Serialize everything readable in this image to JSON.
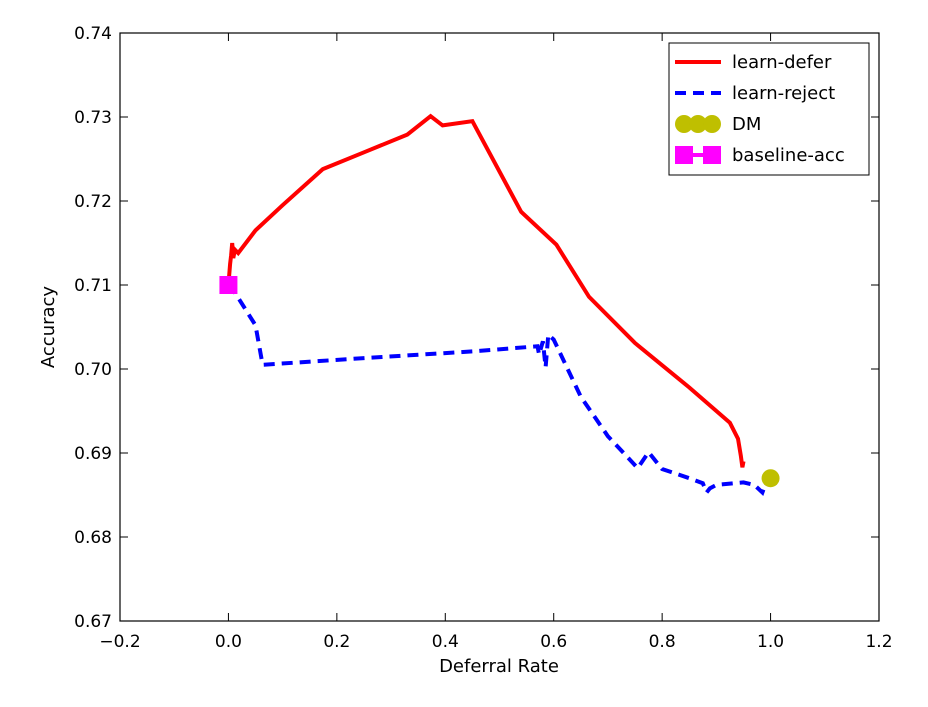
{
  "chart_data": {
    "type": "line",
    "title": "",
    "xlabel": "Deferral Rate",
    "ylabel": "Accuracy",
    "xlim": [
      -0.2,
      1.2
    ],
    "ylim": [
      0.67,
      0.74
    ],
    "x_ticks": [
      -0.2,
      0.0,
      0.2,
      0.4,
      0.6,
      0.8,
      1.0,
      1.2
    ],
    "y_ticks": [
      0.67,
      0.68,
      0.69,
      0.7,
      0.71,
      0.72,
      0.73,
      0.74
    ],
    "x_tick_labels": [
      "−0.2",
      "0.0",
      "0.2",
      "0.4",
      "0.6",
      "0.8",
      "1.0",
      "1.2"
    ],
    "y_tick_labels": [
      "0.67",
      "0.68",
      "0.69",
      "0.70",
      "0.71",
      "0.72",
      "0.73",
      "0.74"
    ],
    "grid": false,
    "legend_position": "top-right",
    "series": [
      {
        "name": "learn-defer",
        "kind": "line",
        "style": "solid",
        "color": "#ff0000",
        "points": [
          [
            0.0,
            0.71
          ],
          [
            0.003,
            0.7125
          ],
          [
            0.005,
            0.7135
          ],
          [
            0.007,
            0.715
          ],
          [
            0.009,
            0.7132
          ],
          [
            0.012,
            0.7142
          ],
          [
            0.018,
            0.7138
          ],
          [
            0.05,
            0.7165
          ],
          [
            0.1,
            0.7195
          ],
          [
            0.174,
            0.7238
          ],
          [
            0.25,
            0.7258
          ],
          [
            0.33,
            0.7279
          ],
          [
            0.373,
            0.7301
          ],
          [
            0.395,
            0.729
          ],
          [
            0.45,
            0.7295
          ],
          [
            0.54,
            0.7187
          ],
          [
            0.605,
            0.7148
          ],
          [
            0.665,
            0.7086
          ],
          [
            0.75,
            0.7031
          ],
          [
            0.85,
            0.6978
          ],
          [
            0.925,
            0.6936
          ],
          [
            0.94,
            0.6917
          ],
          [
            0.945,
            0.6897
          ],
          [
            0.948,
            0.6883
          ],
          [
            0.95,
            0.689
          ]
        ]
      },
      {
        "name": "learn-reject",
        "kind": "line",
        "style": "dashed",
        "color": "#0000ff",
        "points": [
          [
            0.0,
            0.71
          ],
          [
            0.008,
            0.7095
          ],
          [
            0.05,
            0.7052
          ],
          [
            0.063,
            0.7005
          ],
          [
            0.25,
            0.7013
          ],
          [
            0.45,
            0.7021
          ],
          [
            0.57,
            0.7027
          ],
          [
            0.573,
            0.7017
          ],
          [
            0.58,
            0.7033
          ],
          [
            0.585,
            0.7002
          ],
          [
            0.59,
            0.7041
          ],
          [
            0.6,
            0.7035
          ],
          [
            0.65,
            0.6967
          ],
          [
            0.7,
            0.692
          ],
          [
            0.755,
            0.6882
          ],
          [
            0.775,
            0.6901
          ],
          [
            0.8,
            0.6881
          ],
          [
            0.85,
            0.687
          ],
          [
            0.875,
            0.6864
          ],
          [
            0.882,
            0.6853
          ],
          [
            0.888,
            0.6858
          ],
          [
            0.9,
            0.6862
          ],
          [
            0.95,
            0.6865
          ],
          [
            0.97,
            0.6862
          ],
          [
            0.985,
            0.6853
          ],
          [
            0.99,
            0.6862
          ],
          [
            0.995,
            0.6869
          ]
        ]
      },
      {
        "name": "DM",
        "kind": "marker",
        "marker": "circle",
        "color": "#bfbf00",
        "points": [
          [
            1.0,
            0.687
          ]
        ]
      },
      {
        "name": "baseline-acc",
        "kind": "marker",
        "marker": "square",
        "color": "#ff00ff",
        "points": [
          [
            0.0,
            0.71
          ]
        ]
      }
    ]
  }
}
